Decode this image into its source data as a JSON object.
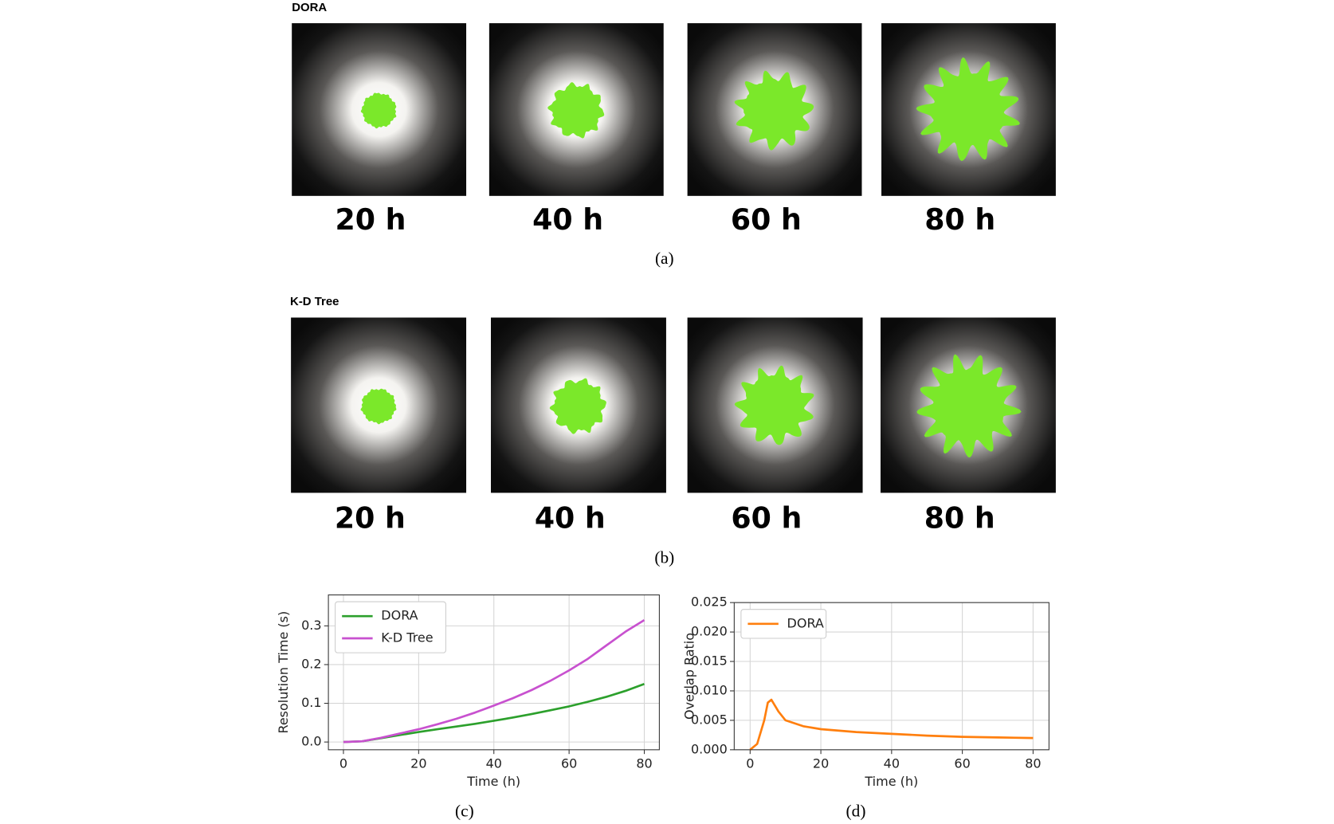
{
  "panels": [
    {
      "title": "DORA",
      "frames": [
        "20 h",
        "40 h",
        "60 h",
        "80 h"
      ],
      "caption": "(a)"
    },
    {
      "title": "K-D Tree",
      "frames": [
        "20 h",
        "40 h",
        "60 h",
        "80 h"
      ],
      "caption": "(b)"
    }
  ],
  "chart_data": [
    {
      "type": "line",
      "caption": "(c)",
      "xlabel": "Time (h)",
      "ylabel": "Resolution Time (s)",
      "x": [
        0,
        5,
        10,
        15,
        20,
        25,
        30,
        35,
        40,
        45,
        50,
        55,
        60,
        65,
        70,
        75,
        80
      ],
      "series": [
        {
          "name": "DORA",
          "color": "#2ca02c",
          "values": [
            0,
            0.002,
            0.01,
            0.018,
            0.026,
            0.033,
            0.04,
            0.047,
            0.055,
            0.063,
            0.072,
            0.082,
            0.092,
            0.104,
            0.117,
            0.132,
            0.15
          ]
        },
        {
          "name": "K-D Tree",
          "color": "#c851cf",
          "values": [
            0,
            0.002,
            0.011,
            0.022,
            0.033,
            0.046,
            0.06,
            0.076,
            0.094,
            0.113,
            0.134,
            0.158,
            0.185,
            0.215,
            0.25,
            0.285,
            0.315
          ]
        }
      ],
      "xlim": [
        -4,
        84
      ],
      "ylim": [
        -0.02,
        0.38
      ],
      "xticks": [
        0,
        20,
        40,
        60,
        80
      ],
      "yticks": [
        {
          "value": 0,
          "label": "0.0"
        },
        0.1,
        0.2,
        0.3
      ],
      "grid": true,
      "legend": "upper-left"
    },
    {
      "type": "line",
      "caption": "(d)",
      "xlabel": "Time (h)",
      "ylabel": "Overlap Ratio",
      "x": [
        0,
        2,
        4,
        5,
        6,
        8,
        10,
        15,
        20,
        30,
        40,
        50,
        60,
        70,
        80
      ],
      "series": [
        {
          "name": "DORA",
          "color": "#ff7f0e",
          "values": [
            0,
            0.001,
            0.005,
            0.008,
            0.0085,
            0.0065,
            0.005,
            0.004,
            0.0035,
            0.003,
            0.0027,
            0.0024,
            0.0022,
            0.0021,
            0.002
          ]
        }
      ],
      "xlim": [
        -4.5,
        84.5
      ],
      "ylim": [
        0,
        0.025
      ],
      "xticks": [
        0,
        20,
        40,
        60,
        80
      ],
      "yticks": [
        {
          "value": 0,
          "label": "0.000"
        },
        {
          "value": 0.005,
          "label": "0.005"
        },
        {
          "value": 0.01,
          "label": "0.010"
        },
        {
          "value": 0.015,
          "label": "0.015"
        },
        {
          "value": 0.02,
          "label": "0.020"
        },
        {
          "value": 0.025,
          "label": "0.025"
        }
      ],
      "grid": true,
      "legend": "upper-left"
    }
  ]
}
